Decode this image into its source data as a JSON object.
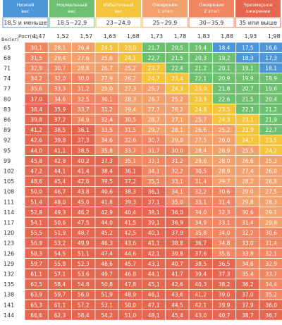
{
  "legend": [
    {
      "label_ru": "Низкий вес",
      "range": "18,5 и меньше",
      "color": "#4d97d9"
    },
    {
      "label_ru": "Нормальный вес",
      "range": "18,5~22,9",
      "color": "#6cc06f"
    },
    {
      "label_ru": "Избыточный вес",
      "range": "23~24,9",
      "color": "#f4c43a"
    },
    {
      "label_ru": "Ожирение 1 этап",
      "range": "25~29,9",
      "color": "#f4a06d"
    },
    {
      "label_ru": "Ожирение 2 этап",
      "range": "30~35,9",
      "color": "#f08662"
    },
    {
      "label_ru": "Чрезмерное ожирение",
      "range": "35 или выше",
      "color": "#e5674f"
    }
  ],
  "axis": {
    "x_label": "Рост(м)",
    "y_label": "Вес(кг)"
  },
  "chart_data": {
    "type": "table",
    "x": [
      "1,47",
      "1,52",
      "1,57",
      "1,63",
      "1,68",
      "1,73",
      "1,78",
      "1,83",
      "1,88",
      "1,93",
      "1,98"
    ],
    "y": [
      "65",
      "68",
      "71",
      "74",
      "77",
      "80",
      "83",
      "86",
      "89",
      "92",
      "95",
      "99",
      "102",
      "105",
      "108",
      "111",
      "114",
      "117",
      "120",
      "123",
      "126",
      "129",
      "132",
      "135",
      "138",
      "141",
      "144"
    ],
    "values": [
      [
        "30,1",
        "28,1",
        "26,4",
        "24,5",
        "23,0",
        "21,7",
        "20,5",
        "19,4",
        "18,4",
        "17,5",
        "16,6"
      ],
      [
        "31,5",
        "29,4",
        "27,6",
        "25,6",
        "24,1",
        "22,7",
        "21,5",
        "20,3",
        "19,2",
        "18,3",
        "17,3"
      ],
      [
        "32,9",
        "30,7",
        "28,8",
        "26,7",
        "25,2",
        "23,7",
        "22,4",
        "21,2",
        "20,1",
        "19,1",
        "18,1"
      ],
      [
        "34,2",
        "32,0",
        "30,0",
        "27,9",
        "26,2",
        "24,7",
        "23,4",
        "22,1",
        "20,9",
        "19,9",
        "18,9"
      ],
      [
        "35,6",
        "33,3",
        "31,2",
        "29,0",
        "27,3",
        "25,7",
        "24,3",
        "23,0",
        "21,8",
        "20,7",
        "19,6"
      ],
      [
        "37,0",
        "34,6",
        "32,5",
        "30,1",
        "28,3",
        "26,7",
        "25,2",
        "23,9",
        "22,6",
        "21,5",
        "20,4"
      ],
      [
        "38,4",
        "35,9",
        "33,7",
        "31,2",
        "29,4",
        "27,7",
        "26,2",
        "24,8",
        "23,5",
        "22,3",
        "21,2"
      ],
      [
        "39,8",
        "37,2",
        "34,9",
        "32,4",
        "30,5",
        "28,7",
        "27,1",
        "25,7",
        "24,3",
        "23,1",
        "21,9"
      ],
      [
        "41,2",
        "38,5",
        "36,1",
        "33,5",
        "31,5",
        "29,7",
        "28,1",
        "26,6",
        "25,2",
        "23,9",
        "22,7"
      ],
      [
        "42,6",
        "39,8",
        "37,3",
        "34,6",
        "32,6",
        "30,7",
        "29,0",
        "27,5",
        "26,0",
        "24,7",
        "23,5"
      ],
      [
        "44,0",
        "41,1",
        "38,5",
        "35,8",
        "33,7",
        "31,7",
        "30,0",
        "28,4",
        "26,9",
        "25,5",
        "24,2"
      ],
      [
        "45,8",
        "42,8",
        "40,2",
        "37,3",
        "35,1",
        "33,1",
        "31,2",
        "29,6",
        "28,0",
        "26,6",
        "25,3"
      ],
      [
        "47,2",
        "44,1",
        "41,4",
        "38,4",
        "36,1",
        "34,1",
        "32,2",
        "30,5",
        "28,9",
        "27,4",
        "26,0"
      ],
      [
        "48,6",
        "45,4",
        "42,6",
        "39,5",
        "37,2",
        "35,1",
        "33,1",
        "31,4",
        "29,7",
        "28,2",
        "26,8"
      ],
      [
        "50,0",
        "46,7",
        "43,8",
        "40,6",
        "38,3",
        "36,1",
        "34,1",
        "32,2",
        "30,6",
        "29,0",
        "27,5"
      ],
      [
        "51,4",
        "48,0",
        "45,0",
        "41,8",
        "39,3",
        "37,1",
        "35,0",
        "33,1",
        "31,4",
        "29,8",
        "28,3"
      ],
      [
        "52,8",
        "49,3",
        "46,2",
        "42,9",
        "40,4",
        "38,1",
        "36,0",
        "34,0",
        "32,3",
        "30,6",
        "29,1"
      ],
      [
        "54,1",
        "50,6",
        "47,5",
        "44,0",
        "41,5",
        "39,1",
        "36,9",
        "34,9",
        "33,1",
        "31,4",
        "29,8"
      ],
      [
        "55,5",
        "51,9",
        "48,7",
        "45,2",
        "42,5",
        "40,1",
        "37,9",
        "35,8",
        "34,0",
        "32,2",
        "30,6"
      ],
      [
        "56,9",
        "53,2",
        "49,9",
        "46,3",
        "43,6",
        "41,1",
        "38,8",
        "36,7",
        "34,8",
        "33,0",
        "31,4"
      ],
      [
        "58,3",
        "54,5",
        "51,1",
        "47,4",
        "44,6",
        "42,1",
        "39,8",
        "37,6",
        "35,6",
        "33,8",
        "32,1"
      ],
      [
        "59,7",
        "55,8",
        "52,3",
        "48,6",
        "45,7",
        "43,1",
        "40,7",
        "38,5",
        "36,5",
        "34,6",
        "32,9"
      ],
      [
        "61,1",
        "57,1",
        "53,6",
        "49,7",
        "46,8",
        "44,1",
        "41,7",
        "39,4",
        "37,3",
        "35,4",
        "33,7"
      ],
      [
        "62,5",
        "58,4",
        "54,8",
        "50,8",
        "47,8",
        "45,1",
        "42,6",
        "40,3",
        "38,2",
        "36,2",
        "34,4"
      ],
      [
        "63,9",
        "59,7",
        "56,0",
        "51,9",
        "48,9",
        "46,1",
        "43,6",
        "41,2",
        "39,0",
        "37,0",
        "35,2"
      ],
      [
        "65,3",
        "61,1",
        "57,2",
        "53,1",
        "50,0",
        "47,1",
        "44,5",
        "42,1",
        "39,9",
        "37,9",
        "36,0"
      ],
      [
        "66,6",
        "62,3",
        "58,4",
        "54,2",
        "51,0",
        "48,1",
        "45,4",
        "43,0",
        "40,7",
        "38,7",
        "36,7"
      ]
    ]
  }
}
